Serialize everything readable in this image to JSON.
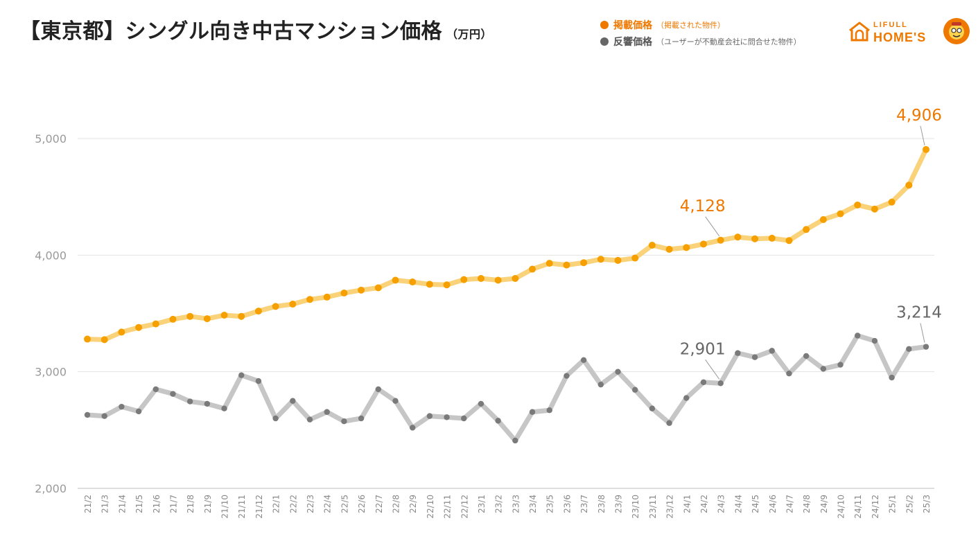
{
  "header": {
    "title": "【東京都】シングル向き中古マンション価格",
    "unit": "（万円）"
  },
  "legend": {
    "listing": {
      "name": "掲載価格",
      "note": "（掲載された物件）",
      "color": "#ee7800"
    },
    "response": {
      "name": "反響価格",
      "note": "（ユーザーが不動産会社に問合せた物件）",
      "color": "#666666"
    }
  },
  "logo": {
    "line1": "LIFULL",
    "line2": "HOME'S"
  },
  "chart_data": {
    "type": "line",
    "title": "【東京都】シングル向き中古マンション価格",
    "ylabel": "万円",
    "ylim": [
      2000,
      5000
    ],
    "yticks": [
      2000,
      3000,
      4000,
      5000
    ],
    "ytick_labels": [
      "2,000",
      "3,000",
      "4,000",
      "5,000"
    ],
    "grid": true,
    "categories": [
      "21/2",
      "21/3",
      "21/4",
      "21/5",
      "21/6",
      "21/7",
      "21/8",
      "21/9",
      "21/10",
      "21/11",
      "21/12",
      "22/1",
      "22/2",
      "22/3",
      "22/4",
      "22/5",
      "22/6",
      "22/7",
      "22/8",
      "22/9",
      "22/10",
      "22/11",
      "22/12",
      "23/1",
      "23/2",
      "23/3",
      "23/4",
      "23/5",
      "23/6",
      "23/7",
      "23/8",
      "23/9",
      "23/10",
      "23/11",
      "23/12",
      "24/1",
      "24/2",
      "24/3",
      "24/4",
      "24/5",
      "24/6",
      "24/7",
      "24/8",
      "24/9",
      "24/10",
      "24/11",
      "24/12",
      "25/1",
      "25/2",
      "25/3"
    ],
    "series": [
      {
        "name": "掲載価格",
        "line_color": "#f9d27a",
        "marker_color": "#f5a000",
        "values": [
          3280,
          3275,
          3340,
          3380,
          3410,
          3450,
          3475,
          3455,
          3485,
          3475,
          3520,
          3560,
          3580,
          3620,
          3640,
          3675,
          3700,
          3720,
          3785,
          3770,
          3750,
          3745,
          3790,
          3800,
          3785,
          3800,
          3880,
          3930,
          3915,
          3935,
          3965,
          3955,
          3975,
          4085,
          4050,
          4065,
          4095,
          4128,
          4155,
          4140,
          4145,
          4125,
          4220,
          4305,
          4355,
          4430,
          4395,
          4455,
          4600,
          4906
        ]
      },
      {
        "name": "反響価格",
        "line_color": "#c6c6c6",
        "marker_color": "#7a7a7a",
        "values": [
          2630,
          2620,
          2700,
          2660,
          2850,
          2810,
          2745,
          2725,
          2685,
          2970,
          2920,
          2600,
          2750,
          2590,
          2655,
          2575,
          2600,
          2850,
          2750,
          2520,
          2620,
          2610,
          2600,
          2725,
          2580,
          2410,
          2655,
          2670,
          2965,
          3100,
          2890,
          3000,
          2845,
          2685,
          2560,
          2775,
          2910,
          2901,
          3160,
          3125,
          3180,
          2985,
          3135,
          3025,
          3060,
          3310,
          3265,
          2950,
          3195,
          3214
        ]
      }
    ],
    "annotations": [
      {
        "series": 0,
        "index": 37,
        "text": "4,128",
        "color": "#ee7800"
      },
      {
        "series": 0,
        "index": 49,
        "text": "4,906",
        "color": "#ee7800"
      },
      {
        "series": 1,
        "index": 37,
        "text": "2,901",
        "color": "#666666"
      },
      {
        "series": 1,
        "index": 49,
        "text": "3,214",
        "color": "#666666"
      }
    ]
  }
}
